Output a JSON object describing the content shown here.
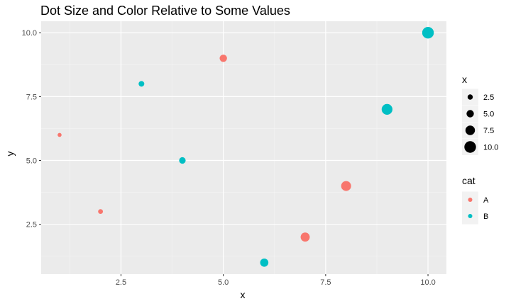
{
  "chart_data": {
    "type": "scatter",
    "title": "Dot Size and Color Relative to Some Values",
    "xlabel": "x",
    "ylabel": "y",
    "xlim": [
      0.55,
      10.45
    ],
    "ylim": [
      0.55,
      10.45
    ],
    "x_ticks": [
      2.5,
      5.0,
      7.5,
      10.0
    ],
    "x_tick_labels": [
      "2.5",
      "5.0",
      "7.5",
      "10.0"
    ],
    "y_ticks": [
      2.5,
      5.0,
      7.5,
      10.0
    ],
    "y_tick_labels": [
      "2.5",
      "5.0",
      "7.5",
      "10.0"
    ],
    "grid": true,
    "points": [
      {
        "x": 1,
        "y": 6,
        "size": 1,
        "cat": "A"
      },
      {
        "x": 2,
        "y": 3,
        "size": 2,
        "cat": "A"
      },
      {
        "x": 3,
        "y": 8,
        "size": 3,
        "cat": "B"
      },
      {
        "x": 4,
        "y": 5,
        "size": 4,
        "cat": "B"
      },
      {
        "x": 5,
        "y": 9,
        "size": 5,
        "cat": "A"
      },
      {
        "x": 6,
        "y": 1,
        "size": 6,
        "cat": "B"
      },
      {
        "x": 7,
        "y": 2,
        "size": 7,
        "cat": "A"
      },
      {
        "x": 8,
        "y": 4,
        "size": 8,
        "cat": "A"
      },
      {
        "x": 9,
        "y": 7,
        "size": 9,
        "cat": "B"
      },
      {
        "x": 10,
        "y": 10,
        "size": 10,
        "cat": "B"
      }
    ],
    "size_legend": {
      "title": "x",
      "entries": [
        {
          "label": "2.5",
          "value": 2.5
        },
        {
          "label": "5.0",
          "value": 5.0
        },
        {
          "label": "7.5",
          "value": 7.5
        },
        {
          "label": "10.0",
          "value": 10.0
        }
      ]
    },
    "color_legend": {
      "title": "cat",
      "entries": [
        {
          "label": "A",
          "color": "#F8766D"
        },
        {
          "label": "B",
          "color": "#00BFC4"
        }
      ]
    },
    "legend_position": "right",
    "colors": {
      "panel_background": "#EBEBEB",
      "grid_major": "#FFFFFF",
      "grid_minor": "#F5F5F5",
      "cat_A": "#F8766D",
      "cat_B": "#00BFC4",
      "legend_key": "#000000",
      "legend_key_background": "#F2F2F2"
    }
  }
}
